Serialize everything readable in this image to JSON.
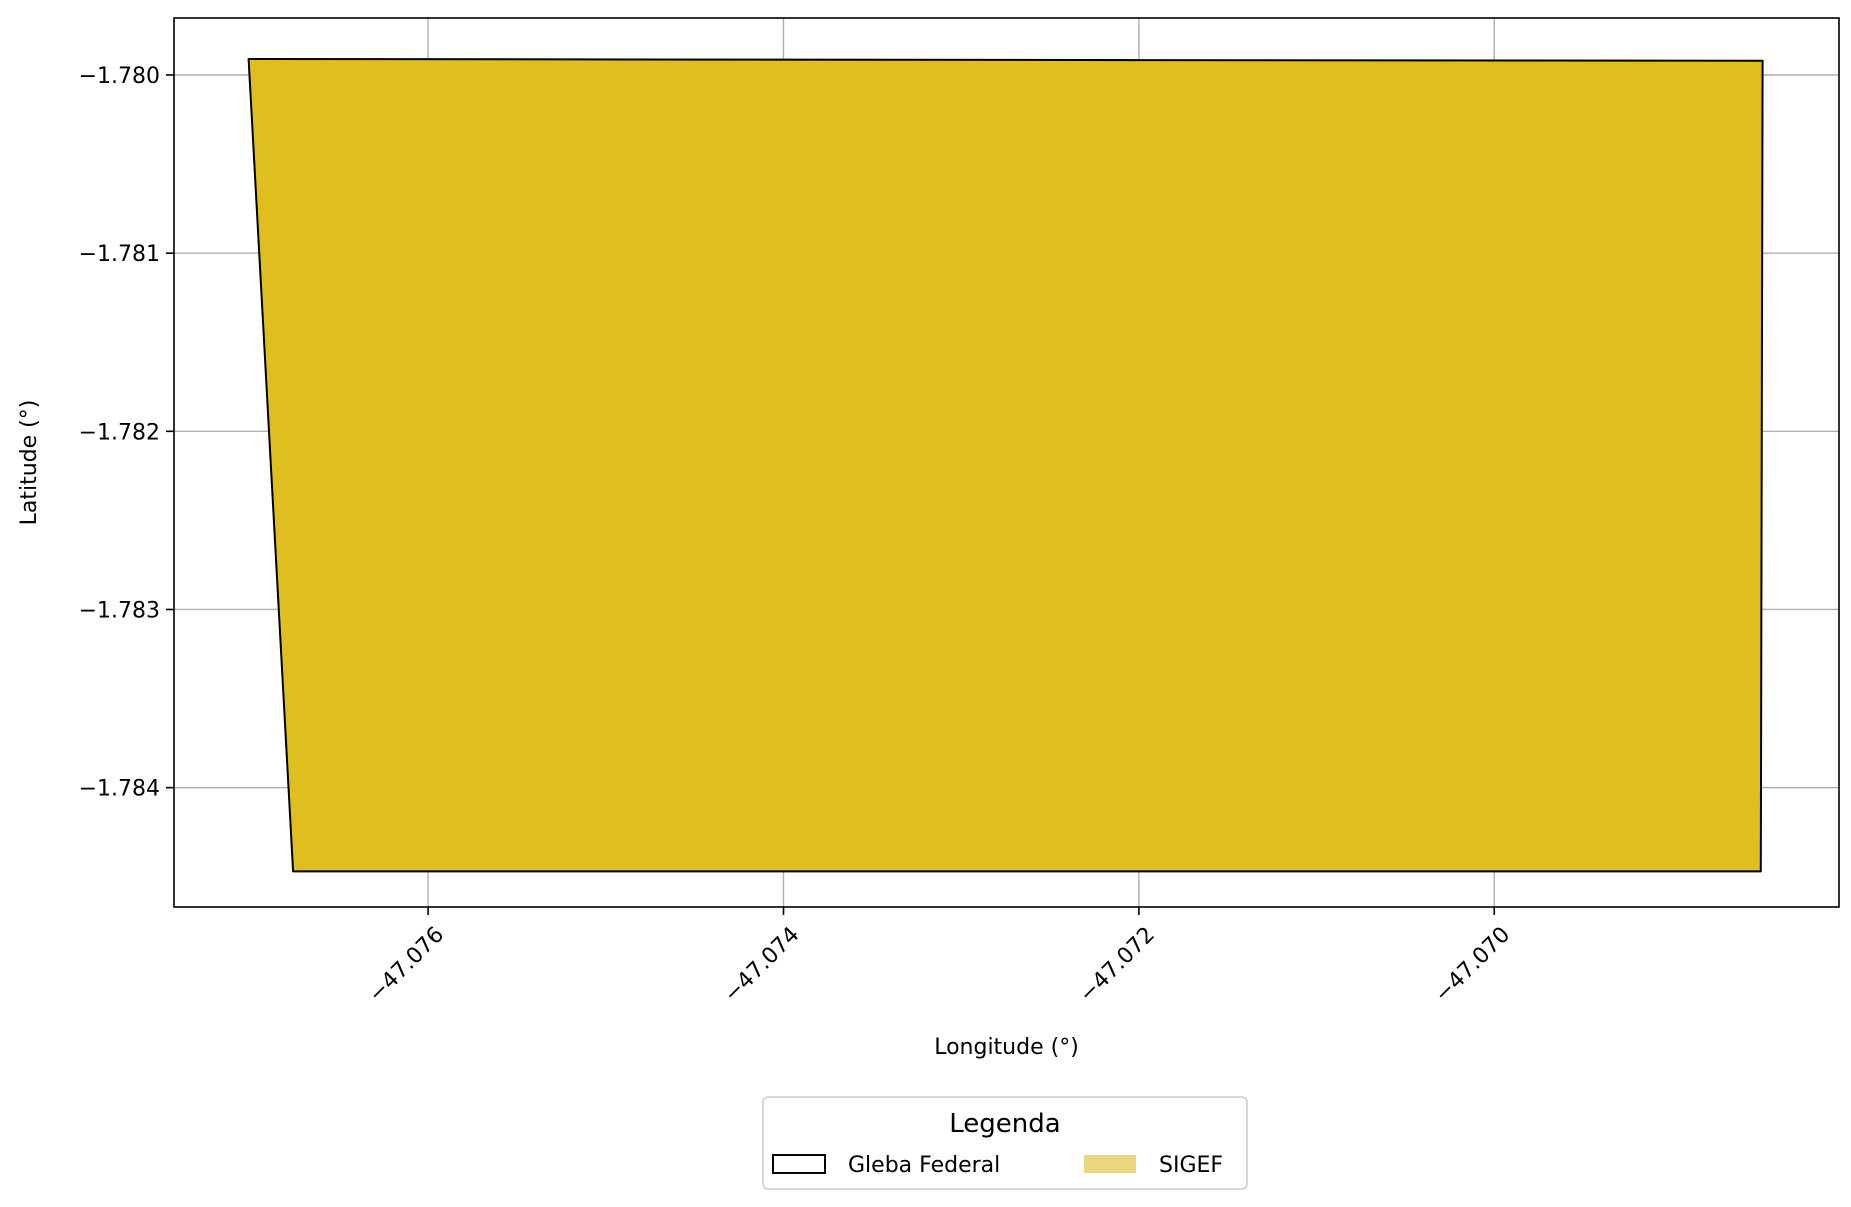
{
  "chart_data": {
    "type": "area",
    "xlabel": "Longitude (°)",
    "ylabel": "Latitude (°)",
    "xlim": [
      -47.07743,
      -47.06806
    ],
    "ylim": [
      -1.78467,
      -1.77968
    ],
    "x_ticks": [
      -47.076,
      -47.074,
      -47.072,
      -47.07
    ],
    "x_tick_labels": [
      "−47.076",
      "−47.074",
      "−47.072",
      "−47.070"
    ],
    "y_ticks": [
      -1.78,
      -1.781,
      -1.782,
      -1.783,
      -1.784
    ],
    "y_tick_labels": [
      "−1.780",
      "−1.781",
      "−1.782",
      "−1.783",
      "−1.784"
    ],
    "grid": true,
    "legend": {
      "title": "Legenda",
      "placement": "bottom-center, below axes",
      "entries": [
        {
          "label": "Gleba Federal",
          "style": "outline",
          "edge_color": "#000000",
          "face_color": "none"
        },
        {
          "label": "SIGEF",
          "style": "filled",
          "face_color": "#ead67f"
        }
      ]
    },
    "polygon": {
      "face_color": "#dfbe1f",
      "edge_color": "#000000",
      "vertices": [
        {
          "x": -47.07701,
          "y": -1.77991
        },
        {
          "x": -47.06849,
          "y": -1.77992
        },
        {
          "x": -47.0685,
          "y": -1.78447
        },
        {
          "x": -47.07676,
          "y": -1.78447
        }
      ]
    }
  }
}
